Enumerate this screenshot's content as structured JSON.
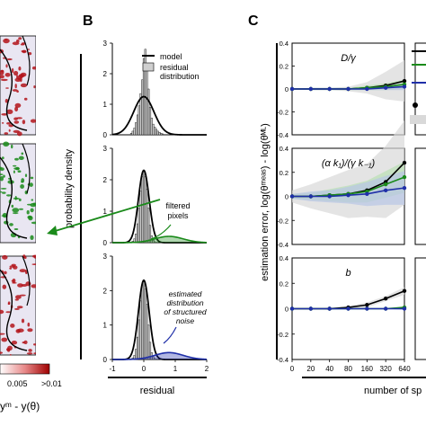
{
  "panel_letters": {
    "b": "B",
    "c": "C"
  },
  "panel_a": {
    "colorbar_ticks": [
      "0.005",
      ">0.01"
    ],
    "colorbar_label": "yᵐ - y(θ)"
  },
  "panel_b": {
    "ylabel": "probability density",
    "xlabel": "residual",
    "xticks": [
      "-1",
      "0",
      "1",
      "2"
    ],
    "yticks": [
      "0",
      "1",
      "2",
      "3"
    ],
    "legend": {
      "model": "model",
      "residual_line1": "residual",
      "residual_line2": "distribution"
    },
    "annotation_green": {
      "line1": "filtered",
      "line2": "pixels"
    },
    "annotation_blue": {
      "line1": "estimated",
      "line2": "distribution",
      "line3": "of structured",
      "line4": "noise"
    }
  },
  "panel_c": {
    "ylabel": "estimation error, log(θᵐᵉᵃˢ) - log(θᴹᴸ)",
    "xlabel": "number of sp",
    "xtick_labels": [
      "0",
      "20",
      "40",
      "80",
      "160",
      "320",
      "640"
    ],
    "yticks": [
      "0.4",
      "0.2",
      "0",
      "-0.2",
      "-0.4"
    ],
    "subplot_titles": [
      "D/γ",
      "(α k₁)/(γ k₋₁)",
      "b"
    ]
  },
  "colors": {
    "black": "#000000",
    "green": "#1a8a1a",
    "blue": "#1f2fa8",
    "green_fill": "#b9dfb3",
    "blue_fill": "#b8c6e6",
    "gray_fill": "#d9d9d9",
    "red": "#b3141b"
  },
  "chart_data": [
    {
      "type": "bar",
      "title": "",
      "xlabel": "residual",
      "ylabel": "probability density",
      "xlim": [
        -1,
        2
      ],
      "ylim": [
        0,
        3
      ],
      "series": [
        {
          "name": "residual distribution",
          "kind": "histogram",
          "bin_width": 0.05,
          "x": [
            -0.4,
            -0.35,
            -0.3,
            -0.25,
            -0.2,
            -0.15,
            -0.1,
            -0.05,
            0.0,
            0.05,
            0.1,
            0.15,
            0.2,
            0.25,
            0.3,
            0.35,
            0.4,
            0.45,
            0.5,
            0.55,
            0.6
          ],
          "values": [
            0.05,
            0.12,
            0.22,
            0.4,
            0.65,
            0.95,
            1.35,
            1.8,
            2.5,
            2.8,
            2.2,
            1.5,
            0.9,
            0.55,
            0.35,
            0.25,
            0.18,
            0.12,
            0.08,
            0.05,
            0.03
          ]
        },
        {
          "name": "model",
          "kind": "curve",
          "mean": 0.0,
          "sd": 0.32,
          "peak": 1.25
        }
      ]
    },
    {
      "type": "bar",
      "title": "",
      "xlim": [
        -1,
        2
      ],
      "ylim": [
        0,
        3
      ],
      "series": [
        {
          "name": "histogram",
          "kind": "histogram",
          "bin_width": 0.05,
          "x": [
            -0.35,
            -0.3,
            -0.25,
            -0.2,
            -0.15,
            -0.1,
            -0.05,
            0.0,
            0.05,
            0.1,
            0.15,
            0.2,
            0.25,
            0.3,
            0.35
          ],
          "values": [
            0.05,
            0.12,
            0.28,
            0.6,
            1.1,
            1.65,
            2.1,
            2.25,
            2.1,
            1.7,
            1.1,
            0.55,
            0.22,
            0.08,
            0.03
          ]
        },
        {
          "name": "model",
          "kind": "curve",
          "mean": 0.0,
          "sd": 0.17,
          "peak": 2.3
        },
        {
          "name": "filtered pixels",
          "kind": "curve",
          "mean": 0.8,
          "sd": 0.45,
          "peak": 0.2
        }
      ]
    },
    {
      "type": "bar",
      "title": "",
      "xlim": [
        -1,
        2
      ],
      "ylim": [
        0,
        3
      ],
      "series": [
        {
          "name": "histogram",
          "kind": "histogram",
          "bin_width": 0.05,
          "x": [
            -0.35,
            -0.3,
            -0.25,
            -0.2,
            -0.15,
            -0.1,
            -0.05,
            0.0,
            0.05,
            0.1,
            0.15,
            0.2,
            0.25,
            0.3,
            0.35
          ],
          "values": [
            0.05,
            0.12,
            0.3,
            0.65,
            1.15,
            1.7,
            2.15,
            2.25,
            2.05,
            1.6,
            1.0,
            0.5,
            0.2,
            0.08,
            0.03
          ]
        },
        {
          "name": "model",
          "kind": "curve",
          "mean": 0.0,
          "sd": 0.17,
          "peak": 2.3
        },
        {
          "name": "estimated distribution of structured noise",
          "kind": "curve",
          "mean": 0.8,
          "sd": 0.45,
          "peak": 0.2
        }
      ]
    },
    {
      "type": "line",
      "title": "D/γ",
      "x": [
        0,
        20,
        40,
        80,
        160,
        320,
        640
      ],
      "ylim": [
        -0.4,
        0.4
      ],
      "series": [
        {
          "color": "black",
          "values": [
            0.0,
            0.0,
            0.0,
            0.0,
            0.01,
            0.03,
            0.07
          ],
          "band": [
            0.0,
            0.01,
            0.01,
            0.02,
            0.05,
            0.12,
            0.18
          ]
        },
        {
          "color": "green",
          "values": [
            0.0,
            0.0,
            0.0,
            0.0,
            0.01,
            0.02,
            0.04
          ],
          "band": [
            0.0,
            0.01,
            0.01,
            0.01,
            0.02,
            0.03,
            0.04
          ]
        },
        {
          "color": "blue",
          "values": [
            0.0,
            0.0,
            0.0,
            0.0,
            0.0,
            0.01,
            0.02
          ],
          "band": [
            0.0,
            0.01,
            0.01,
            0.01,
            0.01,
            0.02,
            0.03
          ]
        }
      ]
    },
    {
      "type": "line",
      "title": "(α k₁)/(γ k₋₁)",
      "x": [
        0,
        20,
        40,
        80,
        160,
        320,
        640
      ],
      "ylim": [
        -0.4,
        0.4
      ],
      "series": [
        {
          "color": "black",
          "values": [
            0.0,
            0.0,
            0.01,
            0.02,
            0.05,
            0.12,
            0.28
          ],
          "band": [
            0.05,
            0.1,
            0.15,
            0.2,
            0.22,
            0.3,
            0.35
          ]
        },
        {
          "color": "green",
          "values": [
            0.0,
            0.0,
            0.01,
            0.02,
            0.04,
            0.1,
            0.16
          ],
          "band": [
            0.02,
            0.03,
            0.05,
            0.07,
            0.09,
            0.11,
            0.13
          ]
        },
        {
          "color": "blue",
          "values": [
            0.0,
            0.0,
            0.0,
            0.01,
            0.02,
            0.05,
            0.07
          ],
          "band": [
            0.02,
            0.04,
            0.05,
            0.07,
            0.1,
            0.12,
            0.14
          ]
        }
      ]
    },
    {
      "type": "line",
      "title": "b",
      "x": [
        0,
        20,
        40,
        80,
        160,
        320,
        640
      ],
      "ylim": [
        -0.4,
        0.4
      ],
      "series": [
        {
          "color": "black",
          "values": [
            0.0,
            0.0,
            0.0,
            0.01,
            0.03,
            0.08,
            0.14
          ],
          "band": [
            0.0,
            0.0,
            0.01,
            0.01,
            0.02,
            0.02,
            0.03
          ]
        },
        {
          "color": "green",
          "values": [
            0.0,
            0.0,
            0.0,
            0.0,
            0.0,
            0.0,
            0.01
          ],
          "band": [
            0.0,
            0.0,
            0.0,
            0.0,
            0.0,
            0.0,
            0.01
          ]
        },
        {
          "color": "blue",
          "values": [
            0.0,
            0.0,
            0.0,
            0.0,
            0.0,
            0.0,
            0.0
          ],
          "band": [
            0.0,
            0.0,
            0.0,
            0.0,
            0.0,
            0.0,
            0.01
          ]
        }
      ]
    }
  ]
}
